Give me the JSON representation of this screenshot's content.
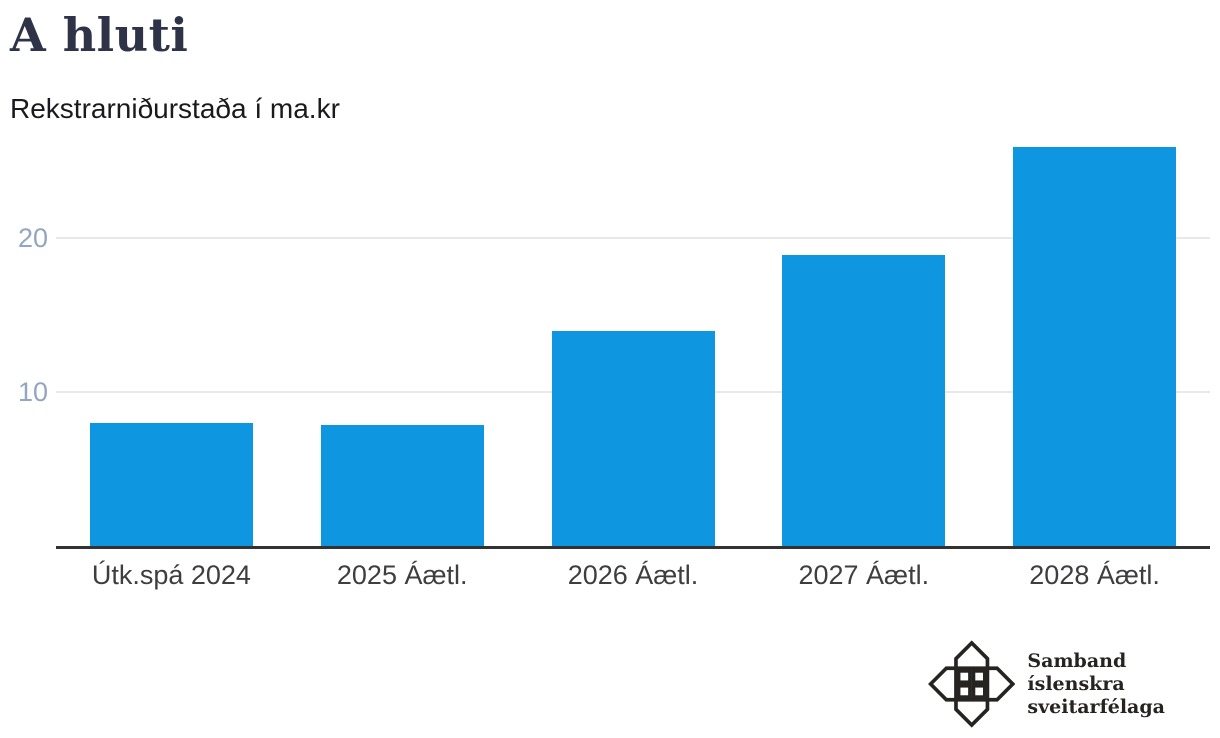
{
  "chart_data": {
    "type": "bar",
    "title": "A hluti",
    "subtitle": "Rekstrarniðurstaða í ma.kr",
    "unit": "ma.kr",
    "categories": [
      "Útk.spá 2024",
      "2025 Áætl.",
      "2026 Áætl.",
      "2027 Áætl.",
      "2028 Áætl."
    ],
    "values": [
      8,
      7.9,
      14,
      18.9,
      25.9
    ],
    "yticks": [
      10,
      20
    ],
    "ylim": [
      0,
      26
    ],
    "grid": "horizontal",
    "legend": "none",
    "bar_color": "#0e96e0"
  },
  "colors": {
    "title": "#2f3348",
    "subtitle": "#1a1a1e",
    "bar": "#0e96e0",
    "axis_line": "#323232",
    "gridline": "#e9e9eb",
    "y_tick_label": "#93a6c0",
    "x_tick_label": "#3e3e42",
    "logo": "#262421"
  },
  "footer": {
    "logo_icon": "samband-knot-emblem",
    "org_name_line1": "Samband íslenskra",
    "org_name_line2": "sveitarfélaga"
  }
}
